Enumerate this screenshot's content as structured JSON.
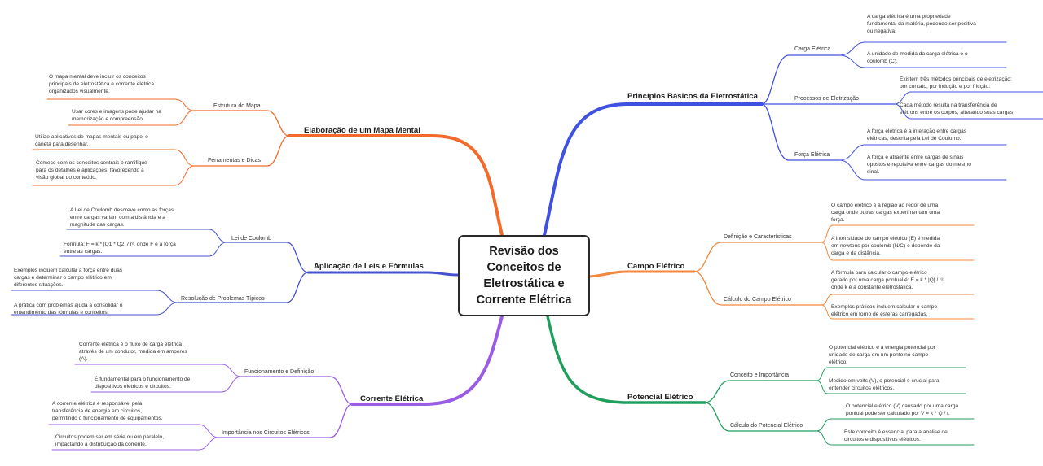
{
  "colors": {
    "blue": "#3f51e0",
    "orange_top": "#f26b2b",
    "orange_right": "#f2873e",
    "green": "#1f9e5c",
    "purple": "#9a5ce6",
    "navy": "#4452cf"
  },
  "central": {
    "line1": "Revisão dos",
    "line2": "Conceitos de",
    "line3": "Eletrostática e",
    "line4": "Corrente Elétrica"
  },
  "branches": {
    "principios": {
      "title": "Princípios Básicos da Eletrostática",
      "carga": {
        "label": "Carga Elétrica",
        "leaf1": [
          "A carga elétrica é uma propriedade",
          "fundamental da matéria, podendo ser positiva",
          "ou negativa."
        ],
        "leaf2": [
          "A unidade de medida da carga elétrica é o",
          "coulomb (C)."
        ]
      },
      "processos": {
        "label": "Processos de Eletrização",
        "leaf1": [
          "Existem três métodos principais de eletrização:",
          "por contato, por indução e por fricção."
        ],
        "leaf2": [
          "Cada método resulta na transferência de",
          "elétrons entre os corpos, alterando suas cargas"
        ]
      },
      "forca": {
        "label": "Força Elétrica",
        "leaf1": [
          "A força elétrica é a interação entre cargas",
          "elétricas, descrita pela Lei de Coulomb."
        ],
        "leaf2": [
          "A força é atraente entre cargas de sinais",
          "opostos e repulsiva entre cargas do mesmo",
          "sinal."
        ]
      }
    },
    "campo": {
      "title": "Campo Elétrico",
      "definicao": {
        "label": "Definição e Características",
        "leaf1": [
          "O campo elétrico é a região ao redor de uma",
          "carga onde outras cargas experimentam uma",
          "força."
        ],
        "leaf2": [
          "A intensidade do campo elétrico (E) é medida",
          "em newtons por coulomb (N/C) e depende da",
          "carga e da distância."
        ]
      },
      "calculo": {
        "label": "Cálculo do Campo Elétrico",
        "leaf1": [
          "A fórmula para calcular o campo elétrico",
          "gerado por uma carga pontual é: E = k * |Q| / r²,",
          "onde k é a constante eletrostática."
        ],
        "leaf2": [
          "Exemplos práticos incluem calcular o campo",
          "elétrico em torno de esferas carregadas."
        ]
      }
    },
    "potencial": {
      "title": "Potencial Elétrico",
      "conceito": {
        "label": "Conceito e Importância",
        "leaf1": [
          "O potencial elétrico é a energia potencial por",
          "unidade de carga em um ponto no campo",
          "elétrico."
        ],
        "leaf2": [
          "Medido em volts (V), o potencial é crucial para",
          "entender circuitos elétricos."
        ]
      },
      "calculo": {
        "label": "Cálculo do Potencial Elétrico",
        "leaf1": [
          "O potencial elétrico (V) causado por uma carga",
          "pontual pode ser calculado por V = k * Q / r."
        ],
        "leaf2": [
          "Este conceito é essencial para a análise de",
          "circuitos e dispositivos elétricos."
        ]
      }
    },
    "mapa": {
      "title": "Elaboração de um Mapa Mental",
      "estrutura": {
        "label": "Estrutura do Mapa",
        "leaf1": [
          "O mapa mental deve incluir os conceitos",
          "principais de eletrostática e corrente elétrica",
          "organizados visualmente."
        ],
        "leaf2": [
          "Usar cores e imagens pode ajudar na",
          "memorização e compreensão."
        ]
      },
      "ferramentas": {
        "label": "Ferramentas e Dicas",
        "leaf1": [
          "Utilize aplicativos de mapas mentais ou papel e",
          "caneta para desenhar."
        ],
        "leaf2": [
          "Comece com os conceitos centrais e ramifique",
          "para os detalhes e aplicações, favorecendo a",
          "visão global do conteúdo."
        ]
      }
    },
    "leis": {
      "title": "Aplicação de Leis e Fórmulas",
      "coulomb": {
        "label": "Lei de Coulomb",
        "leaf1": [
          "A Lei de Coulomb descreve como as forças",
          "entre cargas variam com a distância e a",
          "magnitude das cargas."
        ],
        "leaf2": [
          "Fórmula: F = k * |Q1 * Q2| / r², onde F é a força",
          "entre as cargas."
        ]
      },
      "problemas": {
        "label": "Resolução de Problemas Típicos",
        "leaf1": [
          "Exemplos incluem calcular a força entre duas",
          "cargas e determinar o campo elétrico em",
          "diferentes situações."
        ],
        "leaf2": [
          "A prática com problemas ajuda a consolidar o",
          "entendimento das fórmulas e conceitos."
        ]
      }
    },
    "corrente": {
      "title": "Corrente Elétrica",
      "funcionamento": {
        "label": "Funcionamento e Definição",
        "leaf1": [
          "Corrente elétrica é o fluxo de carga elétrica",
          "através de um condutor, medida em amperes",
          "(A)."
        ],
        "leaf2": [
          "É fundamental para o funcionamento de",
          "dispositivos elétricos e circuitos."
        ]
      },
      "importancia": {
        "label": "Importância nos Circuitos Elétricos",
        "leaf1": [
          "A corrente elétrica é responsável pela",
          "transferência de energia em circuitos,",
          "permitindo o funcionamento de equipamentos."
        ],
        "leaf2": [
          "Circuitos podem ser em série ou em paralelo,",
          "impactando a distribuição da corrente."
        ]
      }
    }
  }
}
